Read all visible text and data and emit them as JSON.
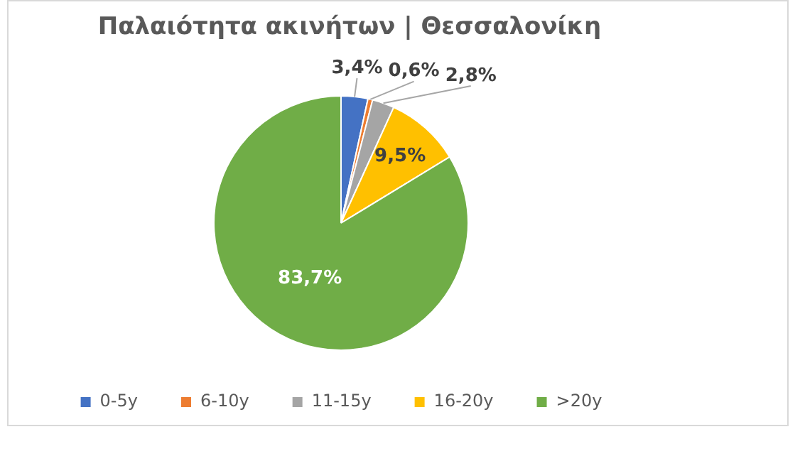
{
  "chart_data": {
    "type": "pie",
    "title": "Παλαιότητα ακινήτων | Θεσσαλονίκη",
    "categories": [
      "0-5y",
      "6-10y",
      "11-15y",
      "16-20y",
      ">20y"
    ],
    "values": [
      3.4,
      0.6,
      2.8,
      9.5,
      83.7
    ],
    "colors": [
      "#4472c4",
      "#ed7d31",
      "#a5a5a5",
      "#ffc000",
      "#70ad47"
    ],
    "value_labels": [
      "3,4%",
      "0,6%",
      "2,8%",
      "9,5%",
      "83,7%"
    ],
    "legend": "bottom"
  }
}
